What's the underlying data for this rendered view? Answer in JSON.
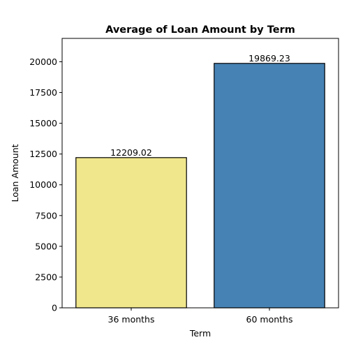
{
  "chart_data": {
    "type": "bar",
    "title": "Average of Loan Amount by Term",
    "xlabel": "Term",
    "ylabel": "Loan Amount",
    "categories": [
      "36 months",
      "60 months"
    ],
    "values": [
      12209.02,
      19869.23
    ],
    "value_labels": [
      "12209.02",
      "19869.23"
    ],
    "bar_colors": [
      "#f0e68c",
      "#4682b4"
    ],
    "edge_color": "#000000",
    "ylim": [
      0,
      21900
    ],
    "yticks": [
      0,
      2500,
      5000,
      7500,
      10000,
      12500,
      15000,
      17500,
      20000
    ],
    "grid": false,
    "legend": false
  }
}
